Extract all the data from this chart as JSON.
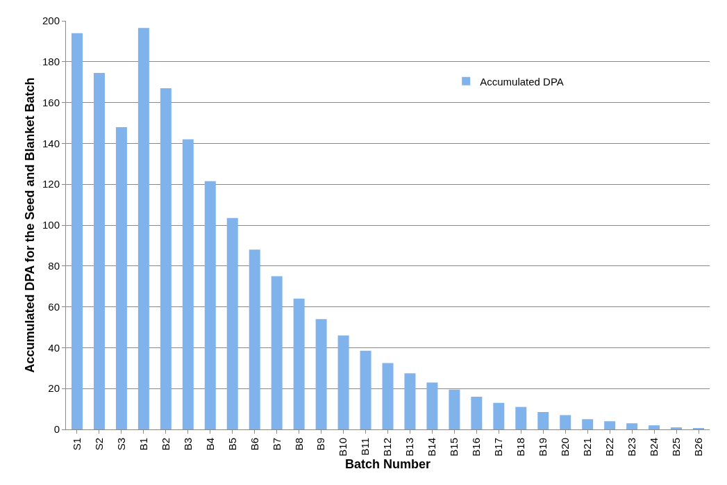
{
  "chart_data": {
    "type": "bar",
    "xlabel": "Batch Number",
    "ylabel": "Accumulated DPA for the Seed and Blanket Batch",
    "categories": [
      "S1",
      "S2",
      "S3",
      "B1",
      "B2",
      "B3",
      "B4",
      "B5",
      "B6",
      "B7",
      "B8",
      "B9",
      "B10",
      "B11",
      "B12",
      "B13",
      "B14",
      "B15",
      "B16",
      "B17",
      "B18",
      "B19",
      "B20",
      "B21",
      "B22",
      "B23",
      "B24",
      "B25",
      "B26"
    ],
    "series": [
      {
        "name": "Accumulated DPA",
        "color": "#80b2ec",
        "values": [
          194,
          174.5,
          148,
          196.5,
          167,
          142,
          121.5,
          103.5,
          88,
          75,
          64,
          54,
          46,
          38.5,
          32.5,
          27.5,
          23,
          19.5,
          16,
          13,
          11,
          8.5,
          7,
          5,
          4,
          3,
          2,
          1,
          0.5
        ]
      }
    ],
    "ylim": [
      0,
      200
    ],
    "yticks": [
      0,
      20,
      40,
      60,
      80,
      100,
      120,
      140,
      160,
      180,
      200
    ],
    "grid": "y",
    "legend": "top right"
  }
}
